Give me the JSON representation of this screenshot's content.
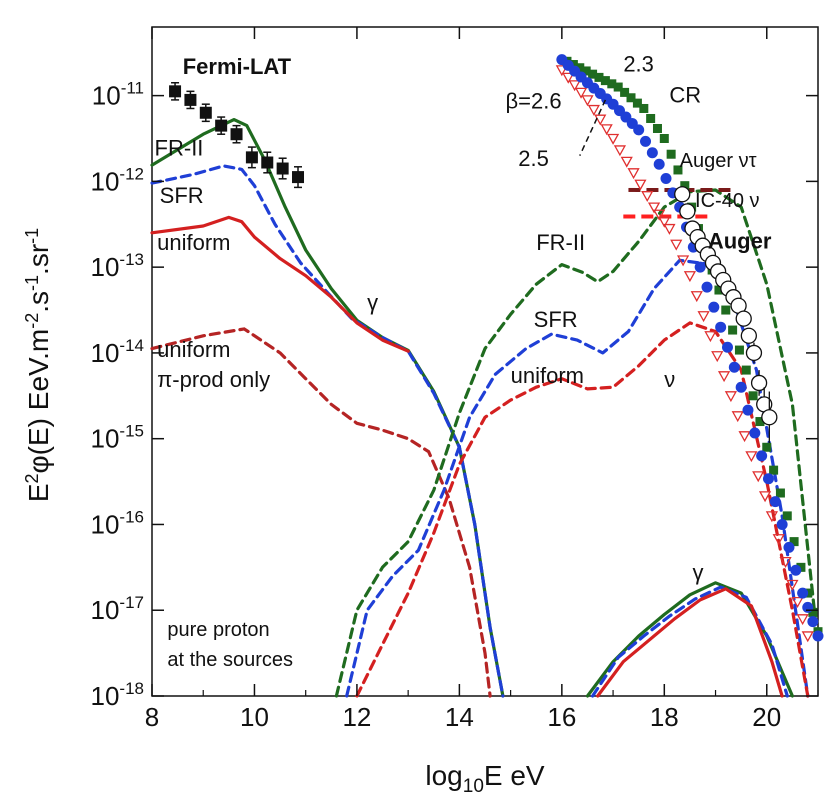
{
  "chart_data": {
    "type": "line",
    "title": "",
    "xlabel": "log10E eV",
    "xlabel_parts": {
      "pre": "log",
      "sub": "10",
      "post": "E eV"
    },
    "ylabel": "E2φ(E) EeV.m-2.s-1.sr-1",
    "ylabel_parts": {
      "a": "E",
      "b": "2",
      "c": "φ(E) EeV.m",
      "d": "-2",
      "e": ".s",
      "f": "-1",
      "g": ".sr",
      "h": "-1"
    },
    "xlim": [
      8,
      21
    ],
    "ylim_log10": [
      -18,
      -10.2
    ],
    "x_ticks": [
      8,
      10,
      12,
      14,
      16,
      18,
      20
    ],
    "y_ticks": [
      {
        "exp": -11,
        "label_base": "10",
        "label_exp": "-11"
      },
      {
        "exp": -12,
        "label_base": "10",
        "label_exp": "-12"
      },
      {
        "exp": -13,
        "label_base": "10",
        "label_exp": "-13"
      },
      {
        "exp": -14,
        "label_base": "10",
        "label_exp": "-14"
      },
      {
        "exp": -15,
        "label_base": "10",
        "label_exp": "-15"
      },
      {
        "exp": -16,
        "label_base": "10",
        "label_exp": "-16"
      },
      {
        "exp": -17,
        "label_base": "10",
        "label_exp": "-17"
      },
      {
        "exp": -18,
        "label_base": "10",
        "label_exp": "-18"
      }
    ],
    "colors": {
      "fr2": "#1f6b1f",
      "sfr": "#1f3fd6",
      "uniform": "#d42020",
      "pi": "#b52424",
      "cr_red": "#e03030",
      "auger_nt": "#7a1a1a",
      "ic40": "#ff2020"
    },
    "series": [
      {
        "name": "FR-II gamma",
        "style": "solid",
        "color": "#1f6b1f",
        "points": [
          [
            8,
            -11.81
          ],
          [
            9,
            -11.45
          ],
          [
            9.6,
            -11.28
          ],
          [
            9.85,
            -11.35
          ],
          [
            10.2,
            -11.75
          ],
          [
            10.6,
            -12.3
          ],
          [
            11.0,
            -12.8
          ],
          [
            11.5,
            -13.25
          ],
          [
            12.0,
            -13.62
          ],
          [
            12.5,
            -13.82
          ],
          [
            13.0,
            -13.97
          ],
          [
            13.5,
            -14.45
          ],
          [
            14.0,
            -15.1
          ],
          [
            14.3,
            -16.0
          ],
          [
            14.6,
            -17.2
          ],
          [
            14.85,
            -18.0
          ]
        ]
      },
      {
        "name": "SFR gamma",
        "style": "dashed",
        "color": "#1f3fd6",
        "points": [
          [
            8,
            -12.02
          ],
          [
            8.8,
            -11.92
          ],
          [
            9.4,
            -11.82
          ],
          [
            9.75,
            -11.86
          ],
          [
            10.0,
            -12.05
          ],
          [
            10.4,
            -12.5
          ],
          [
            10.9,
            -12.95
          ],
          [
            11.4,
            -13.28
          ],
          [
            11.9,
            -13.6
          ],
          [
            12.5,
            -13.82
          ],
          [
            13.0,
            -13.98
          ],
          [
            13.5,
            -14.47
          ],
          [
            14.0,
            -15.1
          ],
          [
            14.3,
            -16.0
          ],
          [
            14.6,
            -17.2
          ],
          [
            14.85,
            -18.0
          ]
        ]
      },
      {
        "name": "uniform gamma",
        "style": "solid",
        "color": "#d42020",
        "points": [
          [
            8,
            -12.6
          ],
          [
            9,
            -12.52
          ],
          [
            9.5,
            -12.42
          ],
          [
            9.75,
            -12.47
          ],
          [
            10.0,
            -12.65
          ],
          [
            10.5,
            -12.9
          ],
          [
            11.0,
            -13.1
          ],
          [
            11.5,
            -13.35
          ],
          [
            12.0,
            -13.65
          ],
          [
            12.5,
            -13.85
          ],
          [
            13.0,
            -13.98
          ]
        ]
      },
      {
        "name": "uniform pi-prod only gamma",
        "style": "dashed",
        "color": "#b52424",
        "points": [
          [
            8,
            -13.95
          ],
          [
            9,
            -13.8
          ],
          [
            9.8,
            -13.72
          ],
          [
            10.5,
            -14.0
          ],
          [
            11.0,
            -14.3
          ],
          [
            11.5,
            -14.6
          ],
          [
            12.0,
            -14.82
          ],
          [
            12.5,
            -14.9
          ],
          [
            13.0,
            -15.0
          ],
          [
            13.4,
            -15.15
          ],
          [
            13.8,
            -15.7
          ],
          [
            14.2,
            -16.5
          ],
          [
            14.5,
            -17.5
          ],
          [
            14.6,
            -18.0
          ]
        ]
      },
      {
        "name": "FR-II neutrino",
        "style": "dashed",
        "color": "#1f6b1f",
        "points": [
          [
            11.6,
            -18.0
          ],
          [
            12.0,
            -17.0
          ],
          [
            12.5,
            -16.5
          ],
          [
            13.0,
            -16.2
          ],
          [
            13.5,
            -15.6
          ],
          [
            14.0,
            -14.7
          ],
          [
            14.5,
            -13.95
          ],
          [
            15.0,
            -13.55
          ],
          [
            15.5,
            -13.2
          ],
          [
            16.0,
            -12.97
          ],
          [
            16.4,
            -13.06
          ],
          [
            16.7,
            -13.17
          ],
          [
            17.0,
            -13.05
          ],
          [
            17.5,
            -12.7
          ],
          [
            18.0,
            -12.3
          ],
          [
            18.5,
            -12.12
          ],
          [
            19.0,
            -12.1
          ],
          [
            19.5,
            -12.3
          ],
          [
            20.0,
            -13.2
          ],
          [
            20.5,
            -14.6
          ],
          [
            21.0,
            -17.4
          ]
        ]
      },
      {
        "name": "SFR neutrino",
        "style": "dashed",
        "color": "#1f3fd6",
        "points": [
          [
            11.8,
            -18.0
          ],
          [
            12.2,
            -17.0
          ],
          [
            12.7,
            -16.6
          ],
          [
            13.2,
            -16.3
          ],
          [
            13.7,
            -15.6
          ],
          [
            14.2,
            -14.75
          ],
          [
            14.7,
            -14.25
          ],
          [
            15.3,
            -13.95
          ],
          [
            15.8,
            -13.78
          ],
          [
            16.3,
            -13.85
          ],
          [
            16.8,
            -14.0
          ],
          [
            17.3,
            -13.75
          ],
          [
            17.8,
            -13.25
          ],
          [
            18.3,
            -12.92
          ],
          [
            18.8,
            -12.96
          ],
          [
            19.3,
            -13.3
          ],
          [
            19.8,
            -14.2
          ],
          [
            20.3,
            -15.9
          ],
          [
            20.8,
            -18.0
          ]
        ]
      },
      {
        "name": "uniform neutrino",
        "style": "dashed",
        "color": "#d42020",
        "points": [
          [
            12.0,
            -18.0
          ],
          [
            12.5,
            -17.4
          ],
          [
            13.0,
            -16.8
          ],
          [
            13.5,
            -16.1
          ],
          [
            14.0,
            -15.3
          ],
          [
            14.5,
            -14.75
          ],
          [
            15.0,
            -14.55
          ],
          [
            15.5,
            -14.4
          ],
          [
            16.0,
            -14.3
          ],
          [
            16.5,
            -14.42
          ],
          [
            17.0,
            -14.4
          ],
          [
            17.5,
            -14.15
          ],
          [
            18.0,
            -13.85
          ],
          [
            18.5,
            -13.65
          ],
          [
            19.0,
            -13.75
          ],
          [
            19.5,
            -14.2
          ],
          [
            20.0,
            -15.5
          ],
          [
            20.5,
            -17.0
          ],
          [
            20.8,
            -18.0
          ]
        ]
      },
      {
        "name": "FR-II secondary gamma",
        "style": "solid",
        "color": "#1f6b1f",
        "points": [
          [
            16.5,
            -18.0
          ],
          [
            17.0,
            -17.6
          ],
          [
            17.5,
            -17.3
          ],
          [
            18.0,
            -17.05
          ],
          [
            18.5,
            -16.82
          ],
          [
            19.0,
            -16.68
          ],
          [
            19.5,
            -16.8
          ],
          [
            20.0,
            -17.3
          ],
          [
            20.5,
            -18.0
          ]
        ]
      },
      {
        "name": "SFR secondary gamma",
        "style": "dashed",
        "color": "#1f3fd6",
        "points": [
          [
            16.6,
            -18.0
          ],
          [
            17.1,
            -17.55
          ],
          [
            17.6,
            -17.3
          ],
          [
            18.1,
            -17.07
          ],
          [
            18.6,
            -16.87
          ],
          [
            19.1,
            -16.73
          ],
          [
            19.6,
            -16.85
          ],
          [
            20.1,
            -17.4
          ],
          [
            20.4,
            -18.0
          ]
        ]
      },
      {
        "name": "uniform secondary gamma",
        "style": "solid",
        "color": "#d42020",
        "points": [
          [
            16.7,
            -18.0
          ],
          [
            17.2,
            -17.6
          ],
          [
            17.7,
            -17.35
          ],
          [
            18.2,
            -17.1
          ],
          [
            18.7,
            -16.88
          ],
          [
            19.2,
            -16.75
          ],
          [
            19.7,
            -16.95
          ],
          [
            20.1,
            -17.6
          ],
          [
            20.3,
            -18.0
          ]
        ]
      }
    ],
    "cr_curves": [
      {
        "name": "CR beta=2.3",
        "color": "#1f6b1f",
        "marker": "square",
        "points": [
          [
            16.1,
            -10.6
          ],
          [
            16.6,
            -10.75
          ],
          [
            17.1,
            -10.9
          ],
          [
            17.6,
            -11.15
          ],
          [
            18.0,
            -11.5
          ],
          [
            18.4,
            -12.05
          ],
          [
            18.8,
            -12.8
          ],
          [
            19.2,
            -13.5
          ],
          [
            19.6,
            -14.2
          ],
          [
            20.0,
            -15.1
          ],
          [
            20.4,
            -15.9
          ],
          [
            20.8,
            -16.8
          ],
          [
            21.0,
            -17.25
          ]
        ]
      },
      {
        "name": "CR beta=2.5",
        "color": "#1f3fd6",
        "marker": "circle",
        "points": [
          [
            16.0,
            -10.58
          ],
          [
            16.5,
            -10.85
          ],
          [
            17.0,
            -11.1
          ],
          [
            17.5,
            -11.4
          ],
          [
            17.9,
            -11.8
          ],
          [
            18.3,
            -12.3
          ],
          [
            18.7,
            -13.0
          ],
          [
            19.1,
            -13.7
          ],
          [
            19.5,
            -14.4
          ],
          [
            19.9,
            -15.2
          ],
          [
            20.3,
            -16.0
          ],
          [
            20.7,
            -16.8
          ],
          [
            21.0,
            -17.3
          ]
        ]
      },
      {
        "name": "CR beta=2.6",
        "color": "#e03030",
        "marker": "triangle",
        "points": [
          [
            16.0,
            -10.7
          ],
          [
            16.5,
            -11.05
          ],
          [
            17.0,
            -11.5
          ],
          [
            17.4,
            -11.9
          ],
          [
            17.8,
            -12.3
          ],
          [
            18.1,
            -12.55
          ],
          [
            18.5,
            -13.1
          ],
          [
            18.9,
            -13.8
          ],
          [
            19.3,
            -14.5
          ],
          [
            19.7,
            -15.2
          ],
          [
            20.1,
            -15.9
          ],
          [
            20.5,
            -16.7
          ],
          [
            20.8,
            -17.3
          ]
        ]
      }
    ],
    "fermi_points": [
      {
        "x": 8.45,
        "y": -10.95,
        "err": 0.1
      },
      {
        "x": 8.75,
        "y": -11.05,
        "err": 0.1
      },
      {
        "x": 9.05,
        "y": -11.2,
        "err": 0.1
      },
      {
        "x": 9.35,
        "y": -11.35,
        "err": 0.1
      },
      {
        "x": 9.65,
        "y": -11.45,
        "err": 0.1
      },
      {
        "x": 9.95,
        "y": -11.72,
        "err": 0.12
      },
      {
        "x": 10.25,
        "y": -11.78,
        "err": 0.12
      },
      {
        "x": 10.55,
        "y": -11.85,
        "err": 0.12
      },
      {
        "x": 10.85,
        "y": -11.95,
        "err": 0.12
      }
    ],
    "auger_points": [
      {
        "x": 18.35,
        "y": -12.15,
        "err": 0
      },
      {
        "x": 18.45,
        "y": -12.35,
        "err": 0
      },
      {
        "x": 18.55,
        "y": -12.55,
        "err": 0
      },
      {
        "x": 18.65,
        "y": -12.65,
        "err": 0
      },
      {
        "x": 18.75,
        "y": -12.75,
        "err": 0
      },
      {
        "x": 18.85,
        "y": -12.85,
        "err": 0
      },
      {
        "x": 18.95,
        "y": -12.95,
        "err": 0
      },
      {
        "x": 19.05,
        "y": -13.05,
        "err": 0
      },
      {
        "x": 19.15,
        "y": -13.15,
        "err": 0
      },
      {
        "x": 19.25,
        "y": -13.25,
        "err": 0
      },
      {
        "x": 19.35,
        "y": -13.35,
        "err": 0
      },
      {
        "x": 19.45,
        "y": -13.45,
        "err": 0
      },
      {
        "x": 19.55,
        "y": -13.6,
        "err": 0
      },
      {
        "x": 19.65,
        "y": -13.8,
        "err": 0
      },
      {
        "x": 19.75,
        "y": -14.0,
        "err": 0.12
      },
      {
        "x": 19.85,
        "y": -14.35,
        "err": 0.15
      },
      {
        "x": 19.95,
        "y": -14.6,
        "err": 0.2
      },
      {
        "x": 20.05,
        "y": -14.75,
        "err": 0.3
      }
    ],
    "limits": [
      {
        "name": "Auger nu-tau limit",
        "color": "#7a1a1a",
        "x0": 17.3,
        "x1": 19.4,
        "y": -12.1
      },
      {
        "name": "IC-40 nu limit",
        "color": "#ff2020",
        "x0": 17.2,
        "x1": 18.9,
        "y": -12.41
      }
    ],
    "annotations": [
      {
        "text": "Fermi-LAT",
        "x": 8.6,
        "y": -10.75,
        "bold": true,
        "size": "big",
        "anchor": "start"
      },
      {
        "text": "FR-II",
        "x": 8.05,
        "y": -11.7,
        "size": "big",
        "anchor": "start"
      },
      {
        "text": "SFR",
        "x": 8.15,
        "y": -12.25,
        "size": "big",
        "anchor": "start"
      },
      {
        "text": "uniform",
        "x": 8.1,
        "y": -12.8,
        "size": "big",
        "anchor": "start"
      },
      {
        "text": "γ",
        "x": 12.2,
        "y": -13.5,
        "size": "big",
        "anchor": "start"
      },
      {
        "text": "uniform",
        "x": 8.1,
        "y": -14.05,
        "size": "big",
        "anchor": "start"
      },
      {
        "text": "π-prod only",
        "x": 8.1,
        "y": -14.4,
        "size": "big",
        "anchor": "start"
      },
      {
        "text": "pure proton",
        "x": 8.3,
        "y": -17.3,
        "size": "normal",
        "anchor": "start"
      },
      {
        "text": "at the sources",
        "x": 8.3,
        "y": -17.65,
        "size": "normal",
        "anchor": "start"
      },
      {
        "text": "FR-II",
        "x": 15.5,
        "y": -12.8,
        "size": "big",
        "anchor": "start"
      },
      {
        "text": "SFR",
        "x": 15.45,
        "y": -13.7,
        "size": "big",
        "anchor": "start"
      },
      {
        "text": "uniform",
        "x": 15.0,
        "y": -14.35,
        "size": "big",
        "anchor": "start"
      },
      {
        "text": "ν",
        "x": 18.0,
        "y": -14.4,
        "size": "big",
        "anchor": "start"
      },
      {
        "text": "γ",
        "x": 18.55,
        "y": -16.65,
        "size": "big",
        "anchor": "start"
      },
      {
        "text": "2.3",
        "x": 17.2,
        "y": -10.72,
        "size": "big",
        "anchor": "start"
      },
      {
        "text": "CR",
        "x": 18.1,
        "y": -11.08,
        "size": "big",
        "anchor": "start"
      },
      {
        "text": "β=2.6",
        "x": 14.9,
        "y": -11.15,
        "size": "big",
        "anchor": "start"
      },
      {
        "text": "2.5",
        "x": 15.15,
        "y": -11.82,
        "size": "big",
        "anchor": "start"
      },
      {
        "text": "Auger ντ",
        "x": 18.3,
        "y": -11.83,
        "size": "normal",
        "anchor": "start"
      },
      {
        "text": "IC-40 ν",
        "x": 18.6,
        "y": -12.3,
        "size": "normal",
        "anchor": "start"
      },
      {
        "text": "Auger",
        "x": 18.85,
        "y": -12.78,
        "bold": true,
        "size": "big",
        "anchor": "start"
      }
    ]
  }
}
